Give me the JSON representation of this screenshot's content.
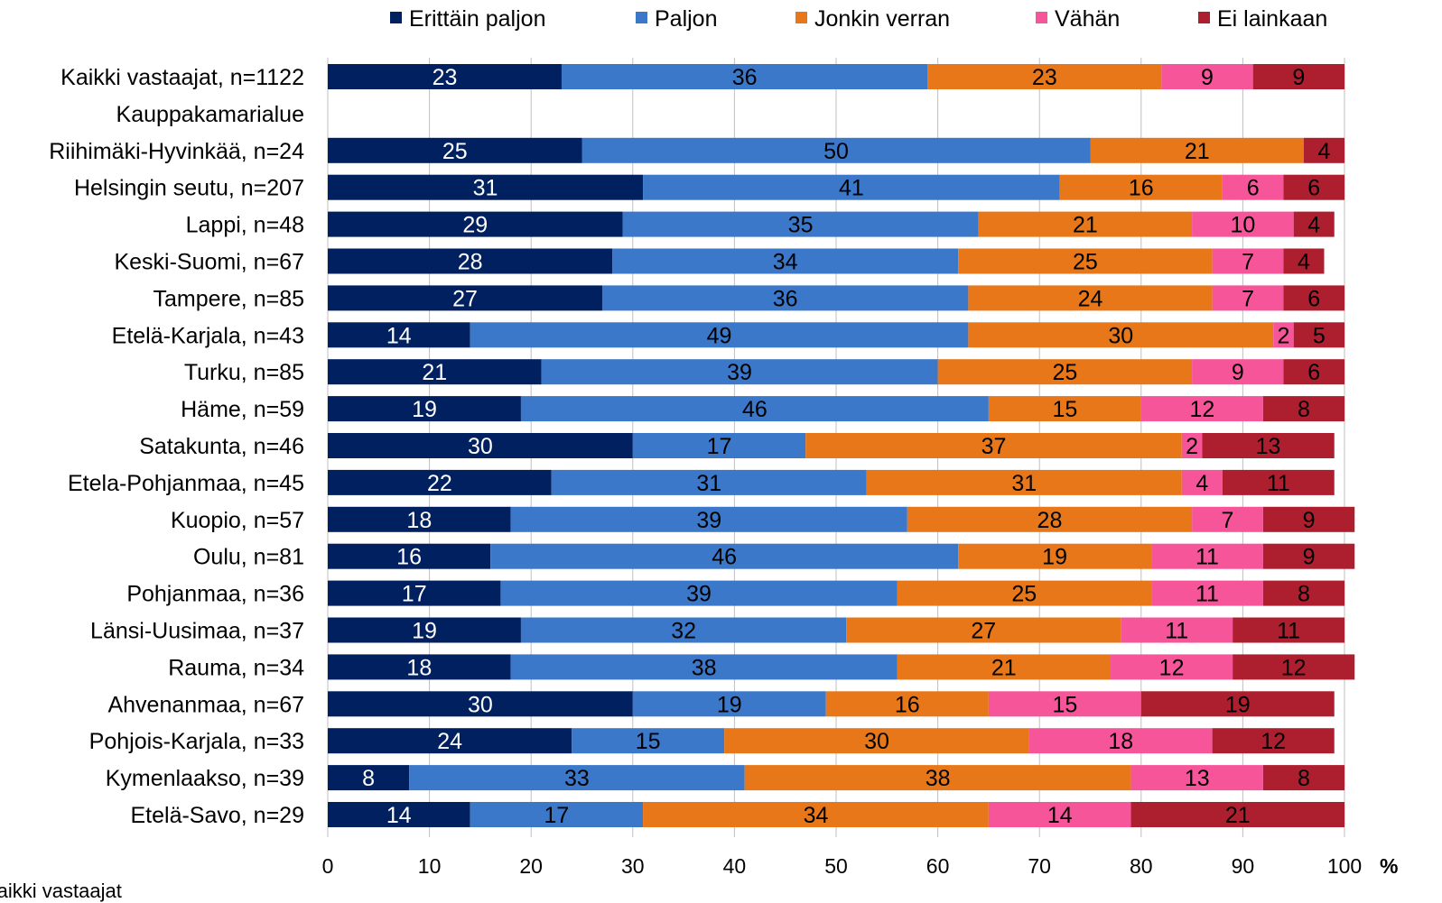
{
  "chart_data": {
    "type": "bar",
    "orientation": "horizontal",
    "stacked": true,
    "categories": [
      "Kaikki vastaajat, n=1122",
      "Kauppakamarialue",
      "Riihimäki-Hyvinkää, n=24",
      "Helsingin seutu, n=207",
      "Lappi, n=48",
      "Keski-Suomi, n=67",
      "Tampere, n=85",
      "Etelä-Karjala, n=43",
      "Turku, n=85",
      "Häme, n=59",
      "Satakunta, n=46",
      "Etela-Pohjanmaa, n=45",
      "Kuopio, n=57",
      "Oulu, n=81",
      "Pohjanmaa, n=36",
      "Länsi-Uusimaa, n=37",
      "Rauma, n=34",
      "Ahvenanmaa, n=67",
      "Pohjois-Karjala, n=33",
      "Kymenlaakso, n=39",
      "Etelä-Savo, n=29"
    ],
    "series": [
      {
        "name": "Erittäin paljon",
        "color": "#002060",
        "label_color": "#ffffff",
        "values": [
          23,
          null,
          25,
          31,
          29,
          28,
          27,
          14,
          21,
          19,
          30,
          22,
          18,
          16,
          17,
          19,
          18,
          30,
          24,
          8,
          14
        ]
      },
      {
        "name": "Paljon",
        "color": "#3b78c9",
        "label_color": "#000000",
        "values": [
          36,
          null,
          50,
          41,
          35,
          34,
          36,
          49,
          39,
          46,
          17,
          31,
          39,
          46,
          39,
          32,
          38,
          19,
          15,
          33,
          17
        ]
      },
      {
        "name": "Jonkin verran",
        "color": "#e87719",
        "label_color": "#000000",
        "values": [
          23,
          null,
          21,
          16,
          21,
          25,
          24,
          30,
          25,
          15,
          37,
          31,
          28,
          19,
          25,
          27,
          21,
          16,
          30,
          38,
          34
        ]
      },
      {
        "name": "Vähän",
        "color": "#f7559a",
        "label_color": "#000000",
        "values": [
          9,
          null,
          null,
          6,
          10,
          7,
          7,
          2,
          9,
          12,
          2,
          4,
          7,
          11,
          11,
          11,
          12,
          15,
          18,
          13,
          14
        ]
      },
      {
        "name": "Ei lainkaan",
        "color": "#ad1f2f",
        "label_color": "#000000",
        "values": [
          9,
          null,
          4,
          6,
          4,
          4,
          6,
          5,
          6,
          8,
          13,
          11,
          9,
          9,
          8,
          11,
          12,
          19,
          12,
          8,
          21
        ]
      }
    ],
    "xlim": [
      0,
      100
    ],
    "xticks": [
      0,
      10,
      20,
      30,
      40,
      50,
      60,
      70,
      80,
      90,
      100
    ],
    "xunit": "%",
    "grid": true,
    "legend_position": "top",
    "footnote": "Kaikki vastaajat"
  }
}
